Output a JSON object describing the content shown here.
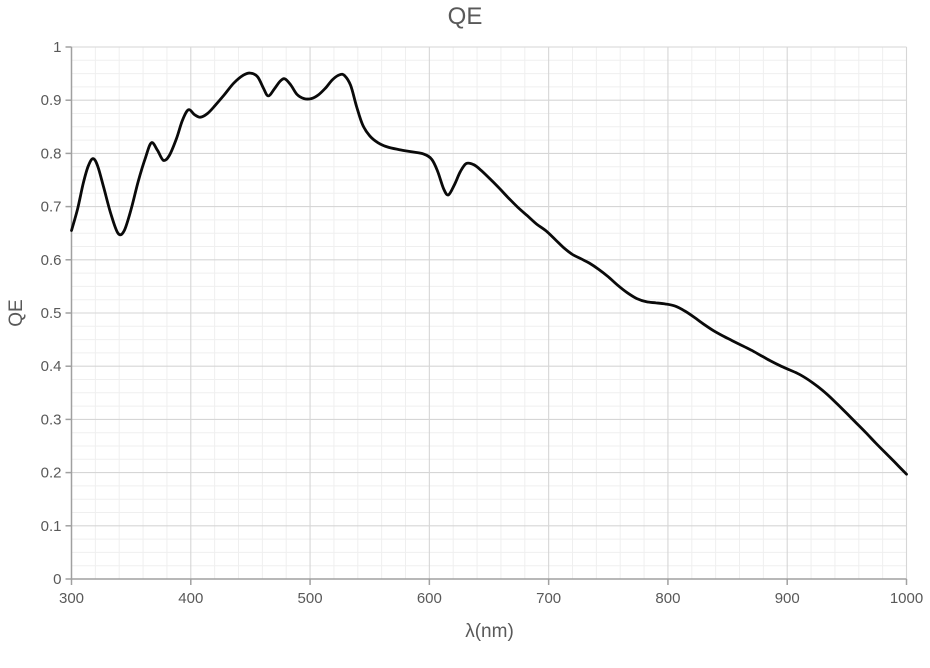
{
  "chart_data": {
    "type": "line",
    "title": "QE",
    "xlabel": "λ(nm)",
    "ylabel": "QE",
    "xlim": [
      300,
      1000
    ],
    "ylim": [
      0,
      1
    ],
    "x_tick_values": [
      300,
      400,
      500,
      600,
      700,
      800,
      900,
      1000
    ],
    "x_tick_labels": [
      "300",
      "400",
      "500",
      "600",
      "700",
      "800",
      "900",
      "1000"
    ],
    "y_tick_values": [
      0,
      0.1,
      0.2,
      0.3,
      0.4,
      0.5,
      0.6,
      0.7,
      0.8,
      0.9,
      1
    ],
    "y_tick_labels": [
      "0",
      "0.1",
      "0.2",
      "0.3",
      "0.4",
      "0.5",
      "0.6",
      "0.7",
      "0.8",
      "0.9",
      "1"
    ],
    "x_minor_step": 20,
    "y_minor_step": 0.025,
    "grid": {
      "major": true,
      "minor": true
    },
    "legend_position": "none",
    "colors": {
      "line": "#0a0a0a",
      "major_grid": "#d6d6d6",
      "minor_grid": "#efefef",
      "axis": "#a0a0a0",
      "text": "#595959"
    },
    "series": [
      {
        "name": "QE",
        "x": [
          300,
          305,
          310,
          314,
          318,
          322,
          327,
          333,
          339,
          344,
          350,
          356,
          362,
          367,
          372,
          377,
          382,
          388,
          393,
          398,
          403,
          408,
          414,
          420,
          428,
          436,
          444,
          450,
          456,
          461,
          465,
          470,
          475,
          479,
          484,
          489,
          495,
          501,
          507,
          513,
          519,
          525,
          529,
          534,
          539,
          544,
          550,
          557,
          565,
          575,
          585,
          595,
          602,
          607,
          612,
          616,
          621,
          626,
          631,
          637,
          643,
          650,
          658,
          666,
          674,
          682,
          690,
          698,
          706,
          713,
          720,
          727,
          734,
          742,
          750,
          758,
          766,
          774,
          782,
          790,
          798,
          806,
          814,
          822,
          830,
          838,
          846,
          854,
          862,
          870,
          878,
          886,
          894,
          902,
          910,
          918,
          926,
          934,
          942,
          950,
          958,
          966,
          974,
          982,
          990,
          1000
        ],
        "y": [
          0.655,
          0.695,
          0.745,
          0.776,
          0.79,
          0.776,
          0.736,
          0.686,
          0.65,
          0.654,
          0.695,
          0.748,
          0.792,
          0.82,
          0.806,
          0.787,
          0.796,
          0.828,
          0.862,
          0.882,
          0.873,
          0.868,
          0.875,
          0.889,
          0.91,
          0.932,
          0.947,
          0.951,
          0.944,
          0.922,
          0.908,
          0.921,
          0.936,
          0.94,
          0.928,
          0.911,
          0.903,
          0.903,
          0.91,
          0.923,
          0.939,
          0.948,
          0.946,
          0.928,
          0.888,
          0.854,
          0.833,
          0.82,
          0.812,
          0.807,
          0.803,
          0.799,
          0.789,
          0.766,
          0.733,
          0.722,
          0.741,
          0.766,
          0.781,
          0.779,
          0.769,
          0.754,
          0.736,
          0.717,
          0.699,
          0.683,
          0.667,
          0.654,
          0.637,
          0.622,
          0.61,
          0.602,
          0.594,
          0.582,
          0.568,
          0.552,
          0.538,
          0.527,
          0.521,
          0.519,
          0.517,
          0.513,
          0.504,
          0.492,
          0.479,
          0.467,
          0.457,
          0.448,
          0.439,
          0.43,
          0.42,
          0.41,
          0.401,
          0.393,
          0.385,
          0.374,
          0.361,
          0.346,
          0.329,
          0.311,
          0.293,
          0.275,
          0.256,
          0.238,
          0.22,
          0.197
        ]
      }
    ]
  }
}
